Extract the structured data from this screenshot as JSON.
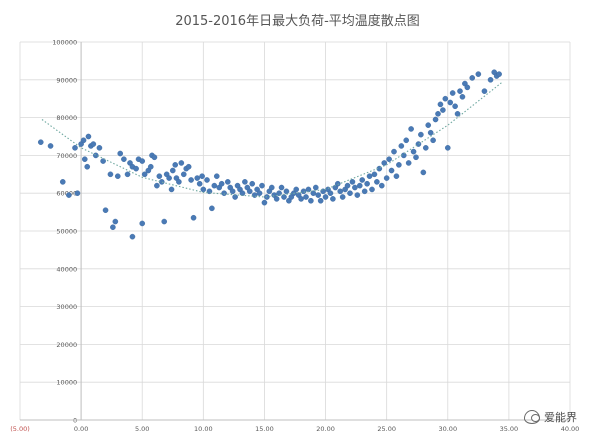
{
  "chart_data": {
    "type": "scatter",
    "title": "2015-2016年日最大负荷-平均温度散点图",
    "xlim": [
      -5,
      40
    ],
    "ylim": [
      0,
      100000
    ],
    "x_ticks": [
      "(5.00)",
      "0.00",
      "5.00",
      "10.00",
      "15.00",
      "20.00",
      "25.00",
      "30.00",
      "35.00",
      "40.00"
    ],
    "y_ticks": [
      "0",
      "10000",
      "20000",
      "30000",
      "40000",
      "50000",
      "60000",
      "70000",
      "80000",
      "90000",
      "100000"
    ],
    "grid": true,
    "marker_color": "#4a7ab5",
    "trendline": {
      "type": "polynomial",
      "style": "dotted",
      "color": "#6fa8a0",
      "x": [
        -3.2,
        0,
        5,
        10,
        15,
        20,
        25,
        30,
        34.5
      ],
      "y": [
        79500,
        72000,
        64200,
        60200,
        59000,
        61000,
        67500,
        78000,
        89500
      ]
    },
    "points": [
      [
        -3.3,
        73500
      ],
      [
        -1.5,
        63000
      ],
      [
        -1.0,
        59500
      ],
      [
        -2.5,
        72500
      ],
      [
        -0.5,
        72000
      ],
      [
        -0.3,
        60000
      ],
      [
        0.0,
        73000
      ],
      [
        0.2,
        74000
      ],
      [
        0.3,
        69000
      ],
      [
        0.5,
        67000
      ],
      [
        0.6,
        75000
      ],
      [
        0.8,
        72500
      ],
      [
        1.0,
        73000
      ],
      [
        1.2,
        70000
      ],
      [
        1.5,
        72000
      ],
      [
        1.8,
        68500
      ],
      [
        2.0,
        55500
      ],
      [
        2.4,
        65000
      ],
      [
        2.6,
        51000
      ],
      [
        2.8,
        52500
      ],
      [
        3.0,
        64500
      ],
      [
        3.2,
        70500
      ],
      [
        3.5,
        69000
      ],
      [
        3.8,
        65000
      ],
      [
        4.0,
        68000
      ],
      [
        4.2,
        67000
      ],
      [
        4.2,
        48500
      ],
      [
        4.5,
        66500
      ],
      [
        4.7,
        69000
      ],
      [
        5.0,
        68500
      ],
      [
        5.0,
        52000
      ],
      [
        5.2,
        65000
      ],
      [
        5.5,
        66000
      ],
      [
        5.7,
        67000
      ],
      [
        5.8,
        70000
      ],
      [
        6.0,
        69500
      ],
      [
        6.2,
        62000
      ],
      [
        6.4,
        64500
      ],
      [
        6.6,
        63000
      ],
      [
        6.8,
        52500
      ],
      [
        7.0,
        65000
      ],
      [
        7.2,
        64000
      ],
      [
        7.4,
        61000
      ],
      [
        7.5,
        66000
      ],
      [
        7.7,
        67500
      ],
      [
        7.8,
        64000
      ],
      [
        8.0,
        63000
      ],
      [
        8.2,
        68000
      ],
      [
        8.4,
        65000
      ],
      [
        8.6,
        66500
      ],
      [
        8.8,
        67000
      ],
      [
        9.0,
        63500
      ],
      [
        9.2,
        53500
      ],
      [
        9.5,
        64000
      ],
      [
        9.7,
        62500
      ],
      [
        9.9,
        64500
      ],
      [
        10.0,
        61000
      ],
      [
        10.3,
        63500
      ],
      [
        10.5,
        60500
      ],
      [
        10.7,
        56000
      ],
      [
        10.9,
        62000
      ],
      [
        11.1,
        64500
      ],
      [
        11.3,
        61500
      ],
      [
        11.5,
        62500
      ],
      [
        11.7,
        60000
      ],
      [
        12.0,
        63000
      ],
      [
        12.2,
        61500
      ],
      [
        12.4,
        60500
      ],
      [
        12.6,
        59000
      ],
      [
        12.8,
        62000
      ],
      [
        13.0,
        61000
      ],
      [
        13.2,
        60000
      ],
      [
        13.4,
        63000
      ],
      [
        13.6,
        61500
      ],
      [
        13.8,
        60500
      ],
      [
        14.0,
        62500
      ],
      [
        14.2,
        59500
      ],
      [
        14.4,
        61000
      ],
      [
        14.6,
        60000
      ],
      [
        14.8,
        62000
      ],
      [
        15.0,
        57500
      ],
      [
        15.2,
        59000
      ],
      [
        15.4,
        60500
      ],
      [
        15.6,
        61500
      ],
      [
        15.8,
        59500
      ],
      [
        16.0,
        58500
      ],
      [
        16.2,
        60000
      ],
      [
        16.4,
        61500
      ],
      [
        16.6,
        59000
      ],
      [
        16.8,
        60500
      ],
      [
        17.0,
        58000
      ],
      [
        17.2,
        59000
      ],
      [
        17.4,
        60000
      ],
      [
        17.6,
        61000
      ],
      [
        17.8,
        59500
      ],
      [
        18.0,
        58500
      ],
      [
        18.2,
        60500
      ],
      [
        18.4,
        59000
      ],
      [
        18.6,
        61000
      ],
      [
        18.8,
        58000
      ],
      [
        19.0,
        60000
      ],
      [
        19.2,
        61500
      ],
      [
        19.4,
        59500
      ],
      [
        19.6,
        58000
      ],
      [
        19.8,
        60500
      ],
      [
        20.0,
        59000
      ],
      [
        20.2,
        61000
      ],
      [
        20.4,
        60000
      ],
      [
        20.6,
        58500
      ],
      [
        20.8,
        61500
      ],
      [
        21.0,
        62500
      ],
      [
        21.2,
        60500
      ],
      [
        21.4,
        59000
      ],
      [
        21.6,
        61000
      ],
      [
        21.8,
        62000
      ],
      [
        22.0,
        60000
      ],
      [
        22.2,
        63000
      ],
      [
        22.4,
        61500
      ],
      [
        22.6,
        59500
      ],
      [
        22.8,
        62000
      ],
      [
        23.0,
        63500
      ],
      [
        23.2,
        60500
      ],
      [
        23.4,
        62500
      ],
      [
        23.6,
        64500
      ],
      [
        23.8,
        61000
      ],
      [
        24.0,
        65000
      ],
      [
        24.2,
        63000
      ],
      [
        24.4,
        66500
      ],
      [
        24.6,
        62000
      ],
      [
        24.8,
        68000
      ],
      [
        25.0,
        64000
      ],
      [
        25.2,
        69000
      ],
      [
        25.4,
        66000
      ],
      [
        25.6,
        71000
      ],
      [
        25.8,
        64500
      ],
      [
        26.0,
        67500
      ],
      [
        26.2,
        72500
      ],
      [
        26.4,
        70000
      ],
      [
        26.6,
        74000
      ],
      [
        26.8,
        68000
      ],
      [
        27.0,
        77000
      ],
      [
        27.2,
        71000
      ],
      [
        27.4,
        69500
      ],
      [
        27.6,
        73000
      ],
      [
        27.8,
        75500
      ],
      [
        28.0,
        65500
      ],
      [
        28.2,
        72000
      ],
      [
        28.4,
        78000
      ],
      [
        28.6,
        76000
      ],
      [
        28.8,
        74000
      ],
      [
        29.0,
        79500
      ],
      [
        29.2,
        81000
      ],
      [
        29.4,
        83500
      ],
      [
        29.6,
        82000
      ],
      [
        29.8,
        85000
      ],
      [
        30.0,
        72000
      ],
      [
        30.2,
        84000
      ],
      [
        30.4,
        86500
      ],
      [
        30.6,
        83000
      ],
      [
        30.8,
        81000
      ],
      [
        31.0,
        87000
      ],
      [
        31.2,
        85500
      ],
      [
        31.4,
        89000
      ],
      [
        31.6,
        88000
      ],
      [
        32.0,
        90500
      ],
      [
        32.5,
        91500
      ],
      [
        33.0,
        87000
      ],
      [
        33.5,
        90000
      ],
      [
        33.8,
        92000
      ],
      [
        34.0,
        91000
      ],
      [
        34.2,
        91500
      ]
    ],
    "watermark": "爱能界"
  }
}
